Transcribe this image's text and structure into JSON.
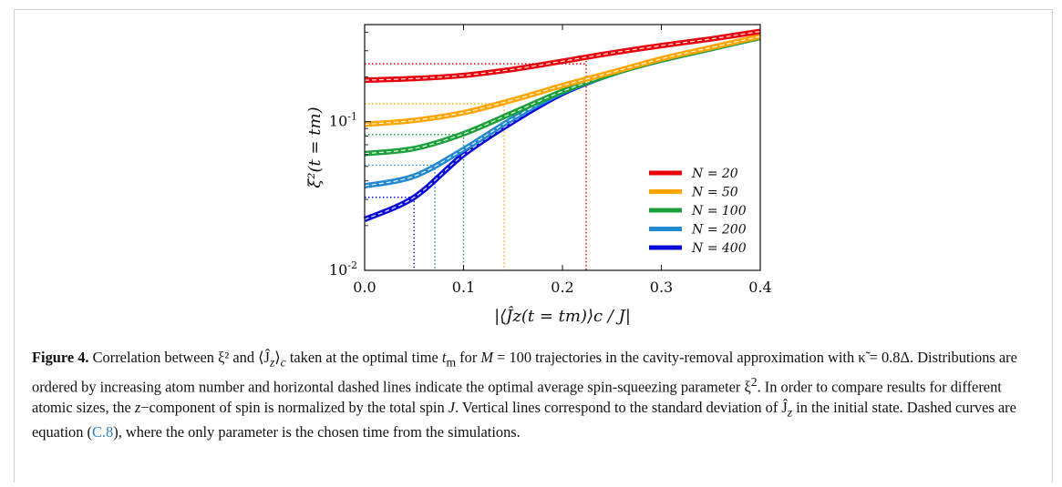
{
  "chart_data": {
    "type": "line",
    "xlabel": "|⟨Ĵz(t = tm)⟩c / J|",
    "ylabel": "ξ²(t = tm)",
    "xlim": [
      0.0,
      0.4
    ],
    "ylim": [
      0.01,
      0.45
    ],
    "yscale": "log",
    "x_ticks": [
      "0.0",
      "0.1",
      "0.2",
      "0.3",
      "0.4"
    ],
    "y_ticks": [
      "10^-2",
      "10^-1"
    ],
    "legend_position": "lower-right",
    "grid": false,
    "series": [
      {
        "name": "N = 20",
        "color": "#e8000b",
        "x": [
          0.0,
          0.05,
          0.1,
          0.15,
          0.2,
          0.25,
          0.3,
          0.35,
          0.4
        ],
        "y": [
          0.19,
          0.195,
          0.205,
          0.225,
          0.255,
          0.29,
          0.325,
          0.36,
          0.405
        ],
        "dotted_level": 0.245,
        "dotted_x": 0.224
      },
      {
        "name": "N = 50",
        "color": "#ffa500",
        "x": [
          0.0,
          0.05,
          0.1,
          0.15,
          0.2,
          0.25,
          0.3,
          0.35,
          0.4
        ],
        "y": [
          0.096,
          0.102,
          0.115,
          0.14,
          0.175,
          0.215,
          0.265,
          0.315,
          0.375
        ],
        "dotted_level": 0.132,
        "dotted_x": 0.141
      },
      {
        "name": "N = 100",
        "color": "#1ca03c",
        "x": [
          0.0,
          0.05,
          0.1,
          0.15,
          0.2,
          0.25,
          0.3,
          0.35,
          0.4
        ],
        "y": [
          0.061,
          0.066,
          0.083,
          0.115,
          0.16,
          0.21,
          0.26,
          0.31,
          0.37
        ],
        "dotted_level": 0.082,
        "dotted_x": 0.1
      },
      {
        "name": "N = 200",
        "color": "#2389d0",
        "x": [
          0.0,
          0.05,
          0.1,
          0.15,
          0.2,
          0.25,
          0.3,
          0.35,
          0.4
        ],
        "y": [
          0.037,
          0.043,
          0.065,
          0.105,
          0.158,
          0.21,
          0.26,
          0.31,
          0.37
        ],
        "dotted_level": 0.051,
        "dotted_x": 0.071
      },
      {
        "name": "N = 400",
        "color": "#0a0ad8",
        "x": [
          0.0,
          0.05,
          0.1,
          0.15,
          0.2,
          0.25,
          0.3,
          0.35,
          0.4
        ],
        "y": [
          0.022,
          0.031,
          0.06,
          0.1,
          0.155,
          0.21,
          0.26,
          0.31,
          0.37
        ],
        "dotted_level": 0.031,
        "dotted_x": 0.05
      }
    ]
  },
  "caption": {
    "label": "Figure 4.",
    "text_1": " Correlation between ξ² and ⟨Ĵ",
    "text_2": "⟩",
    "text_3": " taken at the optimal time ",
    "text_4": " for ",
    "text_5": " = 100 trajectories in the cavity-removal approximation with κ̃ = 0.8Δ. Distributions are ordered by increasing atom number and horizontal dashed lines indicate the optimal average spin-squeezing parameter ξ",
    "text_6": ". In order to compare results for different atomic sizes, the ",
    "text_7": "−component of spin is normalized by the total spin ",
    "text_8": ". Vertical lines correspond to the standard deviation of Ĵ",
    "text_9": " in the initial state. Dashed curves are equation (",
    "ref": "C.8",
    "text_10": "), where the only parameter is the chosen time from the simulations.",
    "sub_z": "z",
    "sub_c": "c",
    "t_m": "t",
    "sub_m": "m",
    "M": "M",
    "sup_2": "2",
    "z_comp": "z",
    "J": "J"
  }
}
